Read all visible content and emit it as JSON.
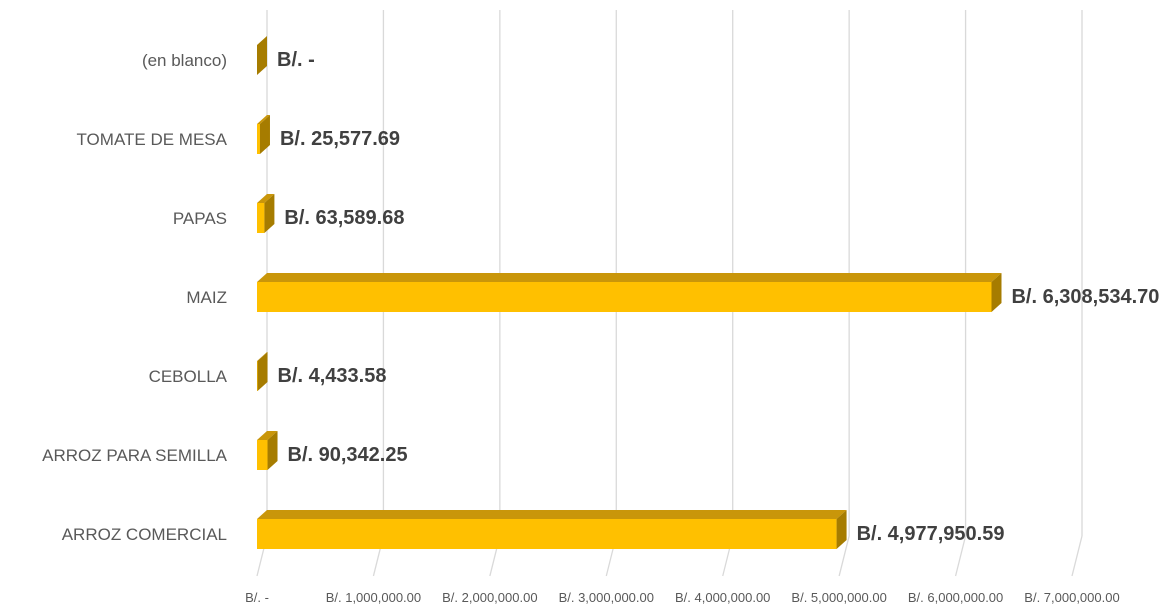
{
  "chart_data": {
    "type": "bar",
    "orientation": "horizontal",
    "style": "3d-clustered-bar",
    "categories": [
      "ARROZ COMERCIAL",
      "ARROZ PARA SEMILLA",
      "CEBOLLA",
      "MAIZ",
      "PAPAS",
      "TOMATE DE MESA",
      "(en blanco)"
    ],
    "values": [
      4977950.59,
      90342.25,
      4433.58,
      6308534.7,
      63589.68,
      25577.69,
      0
    ],
    "data_labels": [
      "B/. 4,977,950.59",
      "B/. 90,342.25",
      "B/. 4,433.58",
      "B/. 6,308,534.70",
      "B/. 63,589.68",
      "B/. 25,577.69",
      "B/. -"
    ],
    "xlim": [
      0,
      7000000
    ],
    "x_ticks": [
      0,
      1000000,
      2000000,
      3000000,
      4000000,
      5000000,
      6000000,
      7000000
    ],
    "x_tick_labels": [
      "B/. -",
      "B/. 1,000,000.00",
      "B/. 2,000,000.00",
      "B/. 3,000,000.00",
      "B/. 4,000,000.00",
      "B/. 5,000,000.00",
      "B/. 6,000,000.00",
      "B/. 7,000,000.00"
    ],
    "title": "",
    "xlabel": "",
    "ylabel": "",
    "grid": "vertical-major",
    "legend": "none"
  },
  "colors": {
    "bar_front": "#FFC000",
    "bar_top": "#C9960A",
    "bar_side": "#A67C00",
    "gridline": "#D9D9D9",
    "axis_text": "#595959",
    "label_text": "#404040"
  }
}
